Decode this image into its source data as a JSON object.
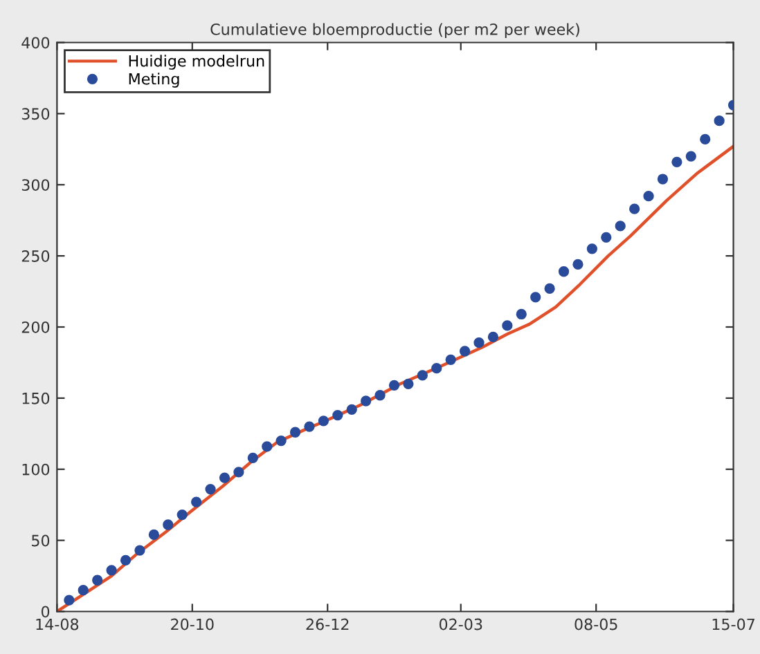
{
  "chart_data": {
    "type": "line",
    "title": "Cumulatieve bloemproductie (per m2 per week)",
    "xlim": [
      "2010-08-14",
      "2011-07-15"
    ],
    "xticks": [
      {
        "value": "2010-08-14",
        "label": "14-08"
      },
      {
        "value": "2010-10-20",
        "label": "20-10"
      },
      {
        "value": "2010-12-26",
        "label": "26-12"
      },
      {
        "value": "2011-03-02",
        "label": "02-03"
      },
      {
        "value": "2011-05-08",
        "label": "08-05"
      },
      {
        "value": "2011-07-15",
        "label": "15-07"
      }
    ],
    "ylim": [
      0,
      400
    ],
    "yticks": [
      0,
      50,
      100,
      150,
      200,
      250,
      300,
      350,
      400
    ],
    "grid": false,
    "legend": "top left",
    "series": [
      {
        "name": "Huidige modelrun",
        "color": "#e0502a",
        "line_style": "solid",
        "marker": "none",
        "x": [
          "2010-08-14",
          "2010-08-27",
          "2010-09-10",
          "2010-09-23",
          "2010-10-07",
          "2010-10-19",
          "2010-11-04",
          "2010-11-18",
          "2010-12-01",
          "2010-12-15",
          "2010-12-25",
          "2011-01-11",
          "2011-01-31",
          "2011-02-21",
          "2011-03-13",
          "2011-03-25",
          "2011-04-05",
          "2011-04-18",
          "2011-04-30",
          "2011-05-14",
          "2011-05-25",
          "2011-06-12",
          "2011-06-27",
          "2011-07-15"
        ],
        "values": [
          0,
          12,
          25,
          41,
          56,
          70,
          88,
          105,
          119,
          128,
          134,
          145,
          160,
          173,
          186,
          195,
          202,
          214,
          230,
          250,
          264,
          289,
          308,
          327
        ]
      },
      {
        "name": "Meting",
        "type": "scatter",
        "color": "#2a4a9a",
        "marker": "circle",
        "x": [
          "2010-08-20",
          "2010-08-27",
          "2010-09-03",
          "2010-09-10",
          "2010-09-17",
          "2010-09-24",
          "2010-10-01",
          "2010-10-08",
          "2010-10-15",
          "2010-10-22",
          "2010-10-29",
          "2010-11-05",
          "2010-11-12",
          "2010-11-19",
          "2010-11-26",
          "2010-12-03",
          "2010-12-10",
          "2010-12-17",
          "2010-12-24",
          "2010-12-31",
          "2011-01-07",
          "2011-01-14",
          "2011-01-21",
          "2011-01-28",
          "2011-02-04",
          "2011-02-11",
          "2011-02-18",
          "2011-02-25",
          "2011-03-04",
          "2011-03-11",
          "2011-03-18",
          "2011-03-25",
          "2011-04-01",
          "2011-04-08",
          "2011-04-15",
          "2011-04-22",
          "2011-04-29",
          "2011-05-06",
          "2011-05-13",
          "2011-05-20",
          "2011-05-27",
          "2011-06-03",
          "2011-06-10",
          "2011-06-17",
          "2011-06-24",
          "2011-07-01",
          "2011-07-08",
          "2011-07-15"
        ],
        "values": [
          8,
          15,
          22,
          29,
          36,
          43,
          54,
          61,
          68,
          77,
          86,
          94,
          98,
          108,
          116,
          120,
          126,
          130,
          134,
          138,
          142,
          148,
          152,
          159,
          160,
          166,
          171,
          177,
          183,
          189,
          193,
          201,
          209,
          221,
          227,
          239,
          244,
          255,
          263,
          271,
          283,
          292,
          304,
          316,
          320,
          332,
          345,
          356
        ]
      }
    ]
  }
}
